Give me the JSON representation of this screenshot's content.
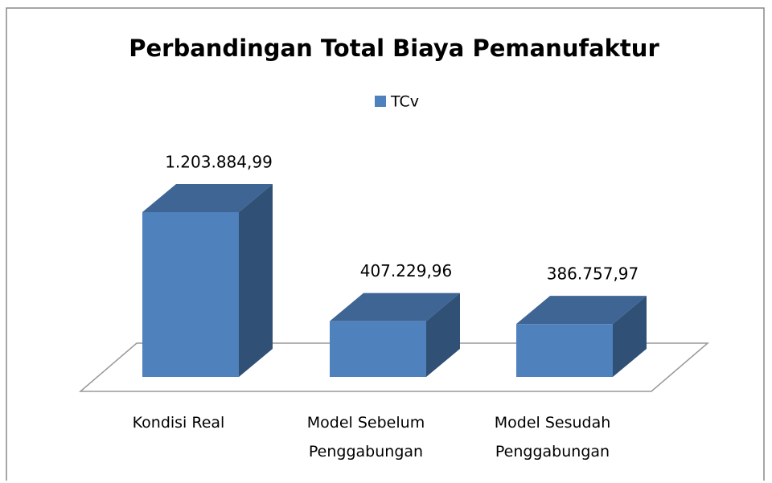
{
  "chart_data": {
    "type": "bar3d",
    "title": "Perbandingan Total Biaya Pemanufaktur",
    "categories": [
      "Kondisi Real",
      "Model Sebelum Penggabungan",
      "Model Sesudah Penggabungan"
    ],
    "series": [
      {
        "name": "TCv",
        "color": "#4f81bd",
        "values": [
          1203884.99,
          407229.96,
          386757.97
        ],
        "value_labels": [
          "1.203.884,99",
          "407.229,96",
          "386.757,97"
        ]
      }
    ],
    "legend": "top"
  }
}
